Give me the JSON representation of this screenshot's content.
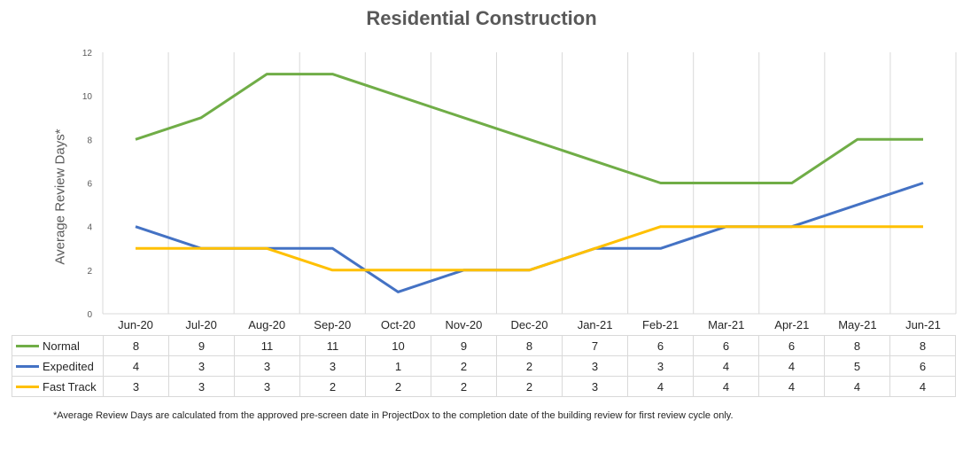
{
  "chart_data": {
    "type": "line",
    "title": "Residential Construction",
    "xlabel": "",
    "ylabel": "Average Review Days*",
    "ylim": [
      0,
      12
    ],
    "yticks": [
      0,
      2,
      4,
      6,
      8,
      10,
      12
    ],
    "grid": "vertical",
    "legend": "data-table-left",
    "categories": [
      "Jun-20",
      "Jul-20",
      "Aug-20",
      "Sep-20",
      "Oct-20",
      "Nov-20",
      "Dec-20",
      "Jan-21",
      "Feb-21",
      "Mar-21",
      "Apr-21",
      "May-21",
      "Jun-21"
    ],
    "series": [
      {
        "name": "Normal",
        "color": "#70ad47",
        "values": [
          8,
          9,
          11,
          11,
          10,
          9,
          8,
          7,
          6,
          6,
          6,
          8,
          8
        ]
      },
      {
        "name": "Expedited",
        "color": "#4472c4",
        "values": [
          4,
          3,
          3,
          3,
          1,
          2,
          2,
          3,
          3,
          4,
          4,
          5,
          6
        ]
      },
      {
        "name": "Fast Track",
        "color": "#ffc000",
        "values": [
          3,
          3,
          3,
          2,
          2,
          2,
          2,
          3,
          4,
          4,
          4,
          4,
          4
        ]
      }
    ]
  },
  "footnote": "*Average Review Days are calculated from the approved pre-screen date in ProjectDox to the completion date of the building review for first review cycle only."
}
